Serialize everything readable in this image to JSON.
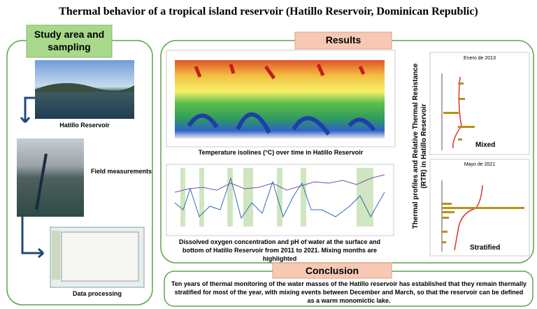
{
  "title": "Thermal behavior of a tropical island reservoir (Hatillo Reservoir, Dominican Republic)",
  "study": {
    "heading": "Study area and sampling",
    "steps": [
      "Hatillo Reservoir",
      "Field measurements",
      "Data processing"
    ]
  },
  "results": {
    "heading": "Results",
    "temperature_caption": "Temperature isolines (°C) over time in Hatillo Reservoir",
    "oxygen_caption": "Dissolved oxygen concentration and pH of water at the surface and bottom of Hatillo Reservoir from 2011 to 2021. Mixing months are highlighted",
    "profiles_label": "Thermal profiles and Relative Thermal Resistance (RTR) in Hatillo Reservoir",
    "profiles": [
      {
        "title": "Enero de 2013",
        "label": "Mixed"
      },
      {
        "title": "Mayo de 2021",
        "label": "Stratified"
      }
    ]
  },
  "conclusion": {
    "heading": "Conclusion",
    "text": "Ten years of thermal monitoring of the water masses of the Hatillo reservoir has established that they remain thermally stratified for most of the year, with mixing events between December and March, so that the reservoir can be defined as a warm monomictic lake."
  }
}
